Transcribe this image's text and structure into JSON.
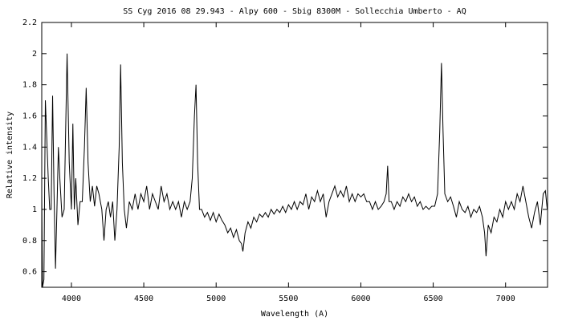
{
  "chart_data": {
    "type": "line",
    "title": "SS Cyg 2016 08 29.943 - Alpy 600 - Sbig 8300M  - Sollecchia Umberto - AQ",
    "x_label": "Wavelength (A)",
    "y_label": "Relative intensity",
    "color": "#000000",
    "xlim": [
      3795,
      7290
    ],
    "ylim": [
      0.5,
      2.2
    ],
    "xticks": [
      4000,
      4500,
      5000,
      5500,
      6000,
      6500,
      7000
    ],
    "yticks": [
      0.6,
      0.8,
      1,
      1.2,
      1.4,
      1.6,
      1.8,
      2,
      2.2
    ],
    "x": [
      3795,
      3800,
      3810,
      3820,
      3830,
      3840,
      3850,
      3860,
      3870,
      3880,
      3890,
      3900,
      3910,
      3920,
      3935,
      3950,
      3970,
      3985,
      4000,
      4010,
      4020,
      4030,
      4045,
      4060,
      4075,
      4090,
      4102,
      4115,
      4130,
      4145,
      4160,
      4175,
      4190,
      4210,
      4225,
      4240,
      4255,
      4270,
      4285,
      4300,
      4315,
      4330,
      4340,
      4352,
      4365,
      4380,
      4400,
      4420,
      4440,
      4460,
      4480,
      4500,
      4520,
      4540,
      4560,
      4580,
      4600,
      4620,
      4640,
      4660,
      4680,
      4700,
      4720,
      4740,
      4760,
      4780,
      4800,
      4820,
      4835,
      4850,
      4861,
      4872,
      4885,
      4900,
      4920,
      4940,
      4960,
      4980,
      5000,
      5020,
      5040,
      5060,
      5080,
      5100,
      5120,
      5140,
      5160,
      5175,
      5185,
      5200,
      5220,
      5240,
      5260,
      5280,
      5300,
      5320,
      5340,
      5360,
      5380,
      5400,
      5420,
      5440,
      5460,
      5480,
      5500,
      5520,
      5540,
      5560,
      5580,
      5600,
      5620,
      5640,
      5660,
      5680,
      5700,
      5720,
      5740,
      5760,
      5780,
      5800,
      5820,
      5840,
      5860,
      5880,
      5900,
      5920,
      5940,
      5960,
      5980,
      6000,
      6020,
      6040,
      6060,
      6080,
      6100,
      6120,
      6140,
      6160,
      6175,
      6185,
      6195,
      6210,
      6230,
      6250,
      6270,
      6290,
      6310,
      6330,
      6350,
      6370,
      6390,
      6410,
      6430,
      6450,
      6470,
      6490,
      6510,
      6530,
      6545,
      6557,
      6568,
      6580,
      6600,
      6620,
      6640,
      6660,
      6680,
      6700,
      6720,
      6740,
      6760,
      6780,
      6800,
      6820,
      6840,
      6855,
      6865,
      6880,
      6900,
      6920,
      6940,
      6960,
      6980,
      7000,
      7020,
      7040,
      7060,
      7080,
      7100,
      7120,
      7140,
      7160,
      7180,
      7200,
      7220,
      7240,
      7260,
      7275,
      7288
    ],
    "values": [
      1.1,
      0.5,
      0.55,
      1.7,
      1.45,
      1.2,
      1.0,
      1.0,
      1.73,
      1.1,
      0.62,
      1.0,
      1.4,
      1.2,
      0.95,
      1.0,
      2.0,
      1.3,
      1.0,
      1.55,
      1.0,
      1.2,
      0.9,
      1.05,
      1.05,
      1.4,
      1.78,
      1.3,
      1.05,
      1.15,
      1.02,
      1.15,
      1.1,
      1.0,
      0.8,
      1.0,
      1.05,
      0.95,
      1.05,
      0.8,
      1.0,
      1.4,
      1.93,
      1.3,
      1.0,
      0.88,
      1.05,
      1.0,
      1.1,
      1.0,
      1.1,
      1.05,
      1.15,
      1.0,
      1.1,
      1.05,
      1.0,
      1.15,
      1.05,
      1.1,
      1.0,
      1.05,
      1.0,
      1.05,
      0.95,
      1.05,
      1.0,
      1.05,
      1.2,
      1.6,
      1.8,
      1.3,
      1.0,
      1.0,
      0.95,
      0.98,
      0.93,
      0.98,
      0.92,
      0.97,
      0.93,
      0.9,
      0.85,
      0.88,
      0.82,
      0.87,
      0.8,
      0.78,
      0.73,
      0.85,
      0.92,
      0.88,
      0.95,
      0.92,
      0.97,
      0.95,
      0.98,
      0.95,
      1.0,
      0.97,
      1.0,
      0.98,
      1.02,
      0.98,
      1.03,
      1.0,
      1.05,
      1.0,
      1.05,
      1.03,
      1.1,
      1.0,
      1.08,
      1.05,
      1.12,
      1.05,
      1.1,
      0.95,
      1.05,
      1.1,
      1.15,
      1.08,
      1.12,
      1.08,
      1.15,
      1.05,
      1.1,
      1.05,
      1.1,
      1.08,
      1.1,
      1.05,
      1.05,
      1.0,
      1.05,
      1.0,
      1.02,
      1.05,
      1.1,
      1.28,
      1.05,
      1.05,
      1.0,
      1.05,
      1.02,
      1.08,
      1.05,
      1.1,
      1.05,
      1.08,
      1.02,
      1.05,
      1.0,
      1.02,
      1.0,
      1.02,
      1.02,
      1.1,
      1.5,
      1.94,
      1.5,
      1.1,
      1.05,
      1.08,
      1.02,
      0.95,
      1.05,
      1.0,
      0.98,
      1.02,
      0.95,
      1.0,
      0.98,
      1.02,
      0.95,
      0.85,
      0.7,
      0.9,
      0.85,
      0.95,
      0.92,
      1.0,
      0.95,
      1.05,
      1.0,
      1.05,
      1.0,
      1.1,
      1.05,
      1.15,
      1.05,
      0.95,
      0.88,
      0.98,
      1.05,
      0.9,
      1.1,
      1.12,
      1.0
    ]
  }
}
